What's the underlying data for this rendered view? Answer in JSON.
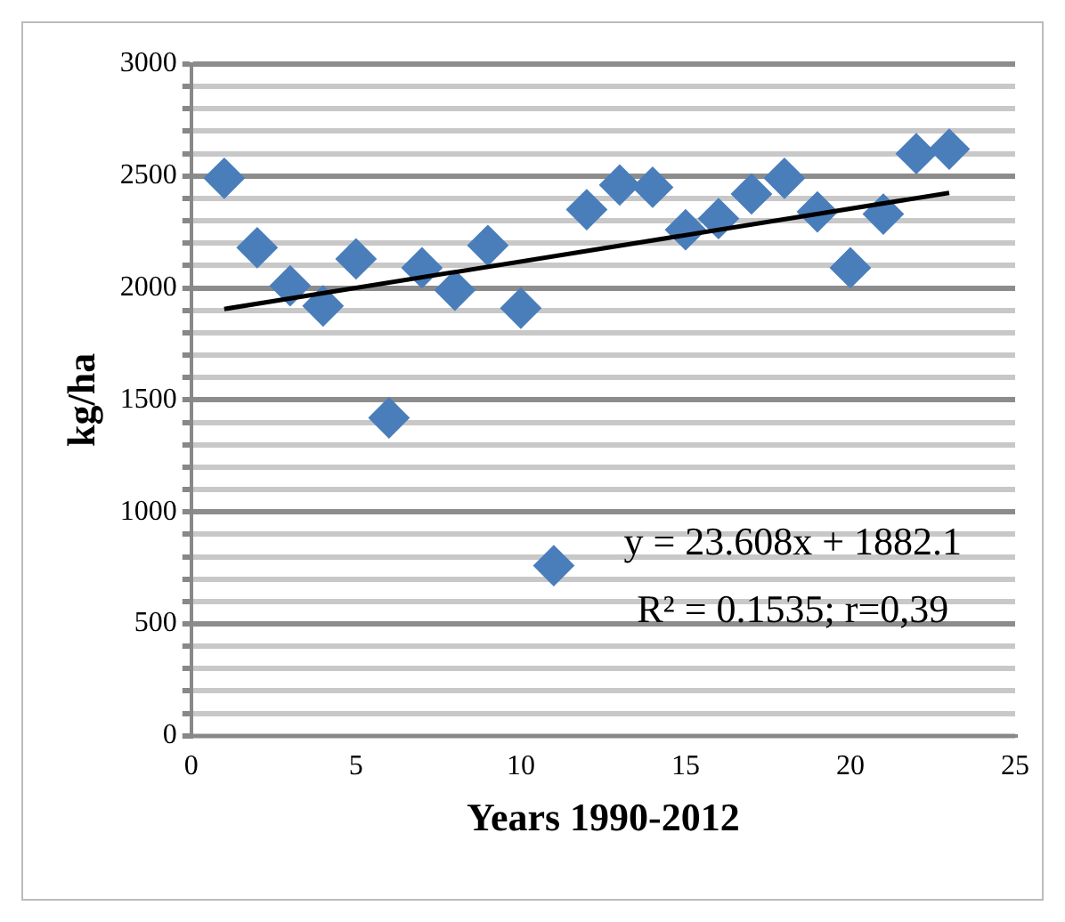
{
  "chart_data": {
    "type": "scatter",
    "xlabel": "Years 1990-2012",
    "ylabel": "kg/ha",
    "marker": "diamond",
    "grid": "y",
    "xlim": [
      0,
      25
    ],
    "xticks": [
      0,
      5,
      10,
      15,
      20,
      25
    ],
    "ylim": [
      0,
      3000
    ],
    "yticks": [
      0,
      {
        "value": 100,
        "label": null
      },
      {
        "value": 200,
        "label": null
      },
      {
        "value": 300,
        "label": null
      },
      {
        "value": 400,
        "label": null
      },
      500,
      {
        "value": 600,
        "label": null
      },
      {
        "value": 700,
        "label": null
      },
      {
        "value": 800,
        "label": null
      },
      {
        "value": 900,
        "label": null
      },
      1000,
      {
        "value": 1100,
        "label": null
      },
      {
        "value": 1200,
        "label": null
      },
      {
        "value": 1300,
        "label": null
      },
      {
        "value": 1400,
        "label": null
      },
      1500,
      {
        "value": 1600,
        "label": null
      },
      {
        "value": 1700,
        "label": null
      },
      {
        "value": 1800,
        "label": null
      },
      {
        "value": 1900,
        "label": null
      },
      2000,
      {
        "value": 2100,
        "label": null
      },
      {
        "value": 2200,
        "label": null
      },
      {
        "value": 2300,
        "label": null
      },
      {
        "value": 2400,
        "label": null
      },
      2500,
      {
        "value": 2600,
        "label": null
      },
      {
        "value": 2700,
        "label": null
      },
      {
        "value": 2800,
        "label": null
      },
      {
        "value": 2900,
        "label": null
      },
      3000
    ],
    "series": [
      {
        "color": "#4a7ebb",
        "x": [
          1,
          2,
          3,
          4,
          5,
          6,
          7,
          8,
          9,
          10,
          11,
          12,
          13,
          14,
          15,
          16,
          17,
          18,
          19,
          20,
          21,
          22,
          23
        ],
        "values": [
          2490,
          2180,
          2010,
          1920,
          2130,
          1420,
          2090,
          1990,
          2190,
          1910,
          760,
          2350,
          2460,
          2450,
          2260,
          2310,
          2420,
          2490,
          2340,
          2090,
          2330,
          2600,
          2620
        ]
      },
      {
        "type": "line",
        "color": "#000000",
        "marker": "none",
        "line_style": "solid",
        "x": [
          1,
          23
        ],
        "values": [
          1906,
          2425
        ]
      }
    ],
    "annotations": [
      "y = 23.608x + 1882.1",
      "R² = 0.1535; r=0,39"
    ]
  }
}
